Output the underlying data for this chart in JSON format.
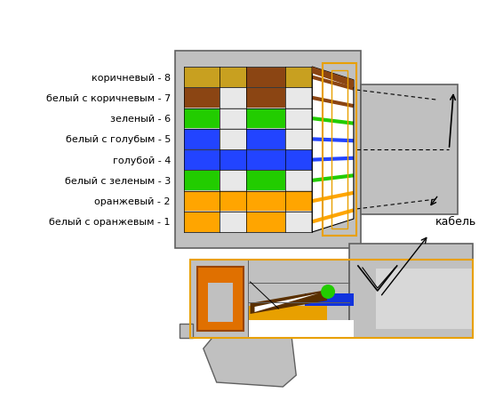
{
  "bg_color": "#ffffff",
  "gray": "#c0c0c0",
  "dark_gray": "#606060",
  "orange_border": "#e8a000",
  "wire_colors_top_to_bottom": [
    {
      "name": "коричневый - 8",
      "stripe": "#c8a020",
      "base": "#c8a020",
      "accent": "#8B4513"
    },
    {
      "name": "белый с коричневым - 7",
      "stripe": "#8B4513",
      "base": "#e8e8e8",
      "accent": "#8B4513"
    },
    {
      "name": "зеленый - 6",
      "stripe": "#22cc00",
      "base": "#e8e8e8",
      "accent": "#22cc00"
    },
    {
      "name": "белый с голубым - 5",
      "stripe": "#2244ff",
      "base": "#e8e8e8",
      "accent": "#2244ff"
    },
    {
      "name": "голубой - 4",
      "stripe": "#2244ff",
      "base": "#2244ff",
      "accent": "#2244ff"
    },
    {
      "name": "белый с зеленым - 3",
      "stripe": "#22cc00",
      "base": "#e8e8e8",
      "accent": "#22cc00"
    },
    {
      "name": "оранжевый - 2",
      "stripe": "#ffa500",
      "base": "#ffa500",
      "accent": "#ffa500"
    },
    {
      "name": "белый с оранжевым - 1",
      "stripe": "#ffa500",
      "base": "#e8e8e8",
      "accent": "#ffa500"
    }
  ],
  "label_text": "кабель"
}
